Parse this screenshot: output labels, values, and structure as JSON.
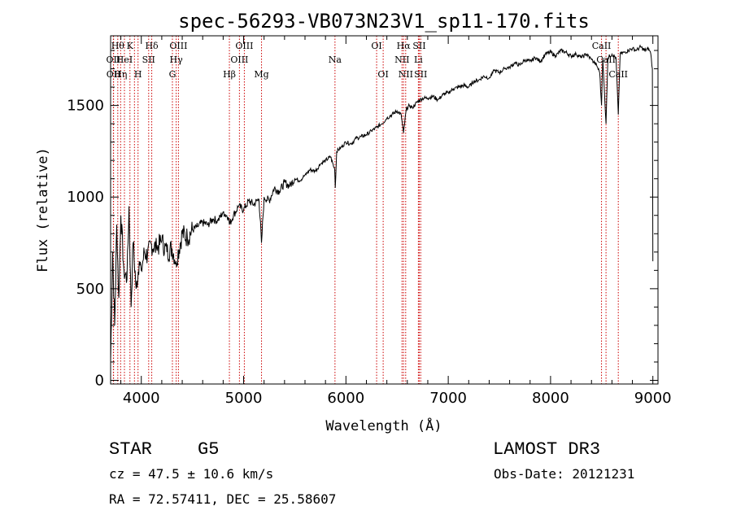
{
  "chart_data": {
    "type": "line",
    "title": "spec-56293-VB073N23V1_sp11-170.fits",
    "xlabel": "Wavelength (Å)",
    "ylabel": "Flux (relative)",
    "xlim": [
      3700,
      9050
    ],
    "ylim": [
      -20,
      1880
    ],
    "xticks": [
      4000,
      5000,
      6000,
      7000,
      8000,
      9000
    ],
    "yticks": [
      0,
      500,
      1000,
      1500
    ],
    "series": [
      {
        "name": "spectrum",
        "x": [
          3700,
          3720,
          3740,
          3760,
          3780,
          3800,
          3830,
          3860,
          3880,
          3900,
          3920,
          3950,
          3980,
          4000,
          4030,
          4060,
          4100,
          4150,
          4200,
          4250,
          4300,
          4340,
          4400,
          4450,
          4500,
          4550,
          4600,
          4650,
          4700,
          4750,
          4800,
          4850,
          4861,
          4900,
          4950,
          5000,
          5050,
          5100,
          5150,
          5175,
          5200,
          5250,
          5300,
          5350,
          5400,
          5450,
          5500,
          5550,
          5600,
          5650,
          5700,
          5750,
          5800,
          5850,
          5890,
          5896,
          5910,
          5950,
          6000,
          6050,
          6100,
          6150,
          6200,
          6250,
          6300,
          6350,
          6400,
          6450,
          6500,
          6540,
          6563,
          6590,
          6620,
          6650,
          6700,
          6750,
          6800,
          6850,
          6900,
          6950,
          7000,
          7050,
          7100,
          7150,
          7200,
          7250,
          7300,
          7350,
          7400,
          7450,
          7500,
          7550,
          7600,
          7650,
          7700,
          7750,
          7800,
          7850,
          7900,
          7950,
          8000,
          8050,
          8100,
          8150,
          8200,
          8250,
          8300,
          8350,
          8400,
          8450,
          8480,
          8498,
          8510,
          8542,
          8560,
          8600,
          8640,
          8662,
          8680,
          8720,
          8760,
          8800,
          8840,
          8880,
          8920,
          8960,
          8980,
          8995,
          9000
        ],
        "values": [
          100,
          700,
          300,
          850,
          450,
          900,
          600,
          550,
          950,
          400,
          750,
          500,
          650,
          600,
          700,
          680,
          740,
          720,
          760,
          700,
          720,
          650,
          800,
          780,
          820,
          840,
          860,
          850,
          880,
          870,
          920,
          890,
          850,
          900,
          950,
          930,
          980,
          960,
          990,
          750,
          1000,
          980,
          1050,
          1030,
          1080,
          1060,
          1100,
          1090,
          1120,
          1150,
          1140,
          1180,
          1200,
          1220,
          1150,
          1050,
          1250,
          1270,
          1300,
          1290,
          1320,
          1330,
          1340,
          1360,
          1380,
          1400,
          1430,
          1450,
          1470,
          1450,
          1350,
          1480,
          1500,
          1490,
          1520,
          1540,
          1540,
          1550,
          1530,
          1560,
          1570,
          1590,
          1600,
          1610,
          1600,
          1630,
          1640,
          1660,
          1650,
          1690,
          1680,
          1700,
          1710,
          1730,
          1720,
          1750,
          1740,
          1760,
          1740,
          1780,
          1790,
          1770,
          1800,
          1790,
          1770,
          1780,
          1760,
          1780,
          1750,
          1720,
          1680,
          1500,
          1760,
          1400,
          1760,
          1780,
          1760,
          1450,
          1780,
          1790,
          1800,
          1810,
          1800,
          1820,
          1800,
          1810,
          1780,
          1700,
          650
        ]
      }
    ],
    "spectral_lines": [
      {
        "wavelength": 3727,
        "label": "OII",
        "row": 2
      },
      {
        "wavelength": 3729,
        "label": "OII",
        "row": 3
      },
      {
        "wavelength": 3770,
        "label": "Hθ",
        "row": 1
      },
      {
        "wavelength": 3798,
        "label": "Hη",
        "row": 3
      },
      {
        "wavelength": 3835,
        "label": "HeI",
        "row": 2
      },
      {
        "wavelength": 3889,
        "label": "K",
        "row": 1
      },
      {
        "wavelength": 3933,
        "label": "",
        "row": 0
      },
      {
        "wavelength": 3968,
        "label": "H",
        "row": 3
      },
      {
        "wavelength": 4072,
        "label": "SII",
        "row": 2
      },
      {
        "wavelength": 4102,
        "label": "Hδ",
        "row": 1
      },
      {
        "wavelength": 4304,
        "label": "G",
        "row": 3
      },
      {
        "wavelength": 4341,
        "label": "Hγ",
        "row": 2
      },
      {
        "wavelength": 4363,
        "label": "OIII",
        "row": 1
      },
      {
        "wavelength": 4861,
        "label": "Hβ",
        "row": 3
      },
      {
        "wavelength": 4959,
        "label": "OIII",
        "row": 2
      },
      {
        "wavelength": 5007,
        "label": "OIII",
        "row": 1
      },
      {
        "wavelength": 5175,
        "label": "Mg",
        "row": 3
      },
      {
        "wavelength": 5893,
        "label": "Na",
        "row": 2
      },
      {
        "wavelength": 6300,
        "label": "OI",
        "row": 1
      },
      {
        "wavelength": 6364,
        "label": "OI",
        "row": 3
      },
      {
        "wavelength": 6548,
        "label": "NII",
        "row": 2
      },
      {
        "wavelength": 6563,
        "label": "Hα",
        "row": 1
      },
      {
        "wavelength": 6584,
        "label": "NII",
        "row": 3
      },
      {
        "wavelength": 6708,
        "label": "Li",
        "row": 2
      },
      {
        "wavelength": 6717,
        "label": "SII",
        "row": 1
      },
      {
        "wavelength": 6731,
        "label": "SII",
        "row": 3
      },
      {
        "wavelength": 8498,
        "label": "CaII",
        "row": 1
      },
      {
        "wavelength": 8542,
        "label": "CaII",
        "row": 2
      },
      {
        "wavelength": 8662,
        "label": "CaII",
        "row": 3
      }
    ]
  },
  "info": {
    "object_class": "STAR",
    "subclass": "G5",
    "survey": "LAMOST DR3",
    "redshift": "cz = 47.5 ± 10.6 km/s",
    "obs_date": "Obs-Date: 20121231",
    "coords": "RA =  72.57411, DEC =  25.58607"
  },
  "colors": {
    "axis": "#000000",
    "spectrum": "#000000",
    "line_marker": "#cc0000"
  }
}
